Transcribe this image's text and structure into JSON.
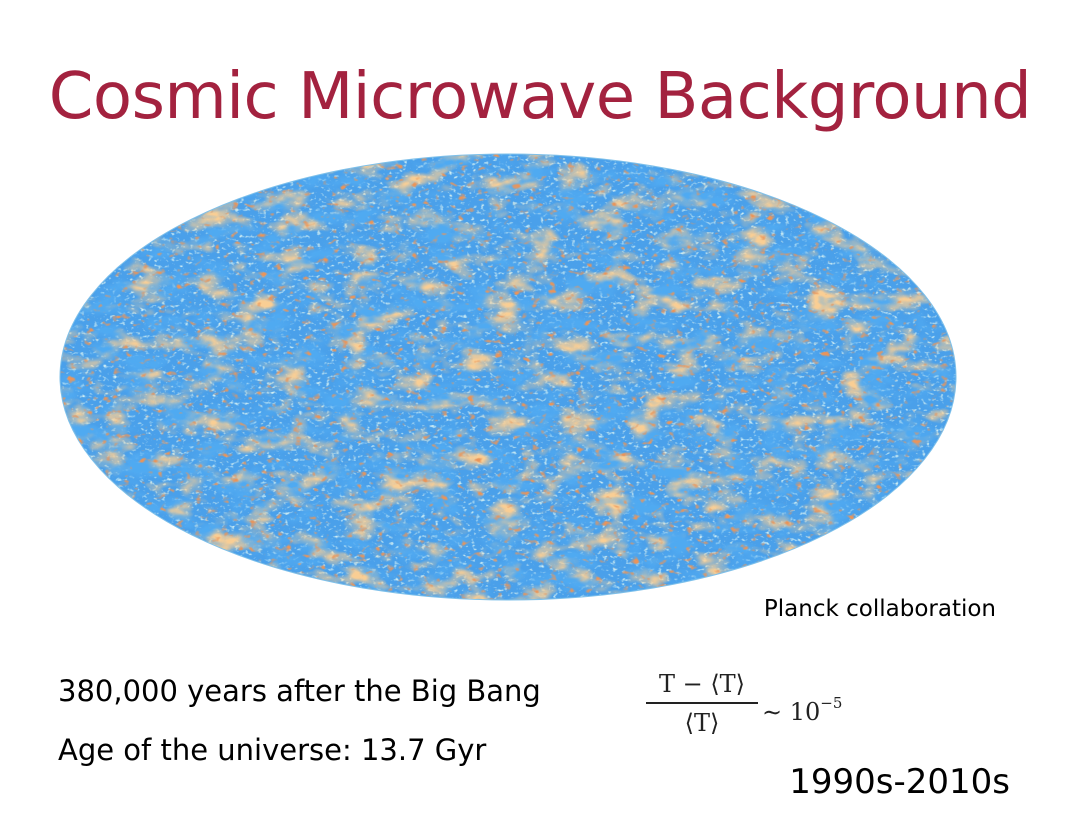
{
  "slide": {
    "title": "Cosmic Microwave Background",
    "title_color": "#a3223f",
    "image": {
      "name": "CMB sky map (Mollweide projection)",
      "palette": {
        "cold": "#1565e0",
        "cool": "#4aa0ea",
        "mid": "#9ad2e0",
        "neutral": "#e8e3b8",
        "warm": "#f2a45a",
        "hot": "#d24a1a"
      }
    },
    "credit": "Planck collaboration",
    "facts": [
      "380,000 years after the Big Bang",
      "Age of the universe: 13.7 Gyr"
    ],
    "formula": {
      "numerator": "T − ⟨T⟩",
      "denominator": "⟨T⟩",
      "relation": "∼ 10",
      "exponent": "−5"
    },
    "era": "1990s-2010s"
  }
}
